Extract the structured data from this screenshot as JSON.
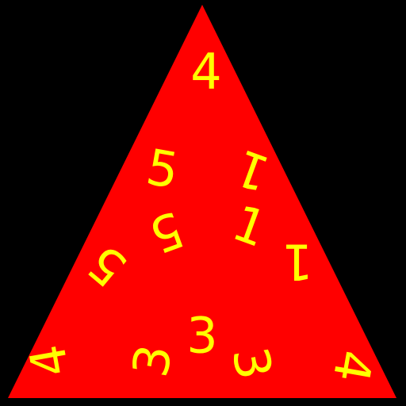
{
  "colors": {
    "background": "#000000",
    "triangle": "#ff0000",
    "digits": "#ffff00"
  },
  "digits": {
    "apex": "4",
    "left_upper_five": "5",
    "left_lower_five": "5",
    "right_upper_one": "1",
    "right_mid_one": "1",
    "right_lower_one": "1",
    "bottom_left_four": "4",
    "bottom_right_four": "4",
    "three_left": "3",
    "three_center": "3",
    "three_right": "3"
  }
}
